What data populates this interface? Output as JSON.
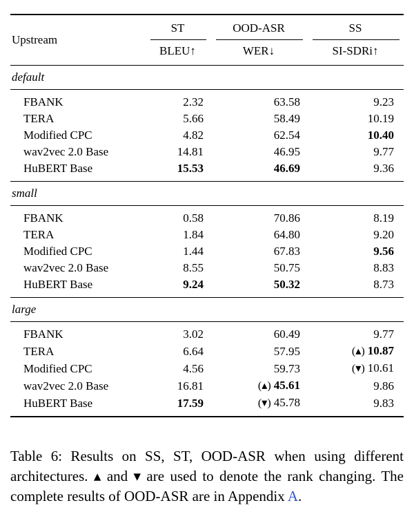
{
  "table": {
    "header": {
      "upstream": "Upstream",
      "groups": [
        {
          "name": "ST",
          "metric": "BLEU↑"
        },
        {
          "name": "OOD-ASR",
          "metric": "WER↓"
        },
        {
          "name": "SS",
          "metric": "SI-SDRi↑"
        }
      ]
    },
    "sections": [
      {
        "label": "default",
        "rows": [
          {
            "upstream": "FBANK",
            "cells": [
              {
                "v": "2.32"
              },
              {
                "v": "63.58"
              },
              {
                "v": "9.23"
              }
            ]
          },
          {
            "upstream": "TERA",
            "cells": [
              {
                "v": "5.66"
              },
              {
                "v": "58.49"
              },
              {
                "v": "10.19"
              }
            ]
          },
          {
            "upstream": "Modified CPC",
            "cells": [
              {
                "v": "4.82"
              },
              {
                "v": "62.54"
              },
              {
                "v": "10.40",
                "bold": true
              }
            ]
          },
          {
            "upstream": "wav2vec 2.0 Base",
            "cells": [
              {
                "v": "14.81"
              },
              {
                "v": "46.95"
              },
              {
                "v": "9.77"
              }
            ]
          },
          {
            "upstream": "HuBERT Base",
            "cells": [
              {
                "v": "15.53",
                "bold": true
              },
              {
                "v": "46.69",
                "bold": true
              },
              {
                "v": "9.36"
              }
            ]
          }
        ]
      },
      {
        "label": "small",
        "rows": [
          {
            "upstream": "FBANK",
            "cells": [
              {
                "v": "0.58"
              },
              {
                "v": "70.86"
              },
              {
                "v": "8.19"
              }
            ]
          },
          {
            "upstream": "TERA",
            "cells": [
              {
                "v": "1.84"
              },
              {
                "v": "64.80"
              },
              {
                "v": "9.20"
              }
            ]
          },
          {
            "upstream": "Modified CPC",
            "cells": [
              {
                "v": "1.44"
              },
              {
                "v": "67.83"
              },
              {
                "v": "9.56",
                "bold": true
              }
            ]
          },
          {
            "upstream": "wav2vec 2.0 Base",
            "cells": [
              {
                "v": "8.55"
              },
              {
                "v": "50.75"
              },
              {
                "v": "8.83"
              }
            ]
          },
          {
            "upstream": "HuBERT Base",
            "cells": [
              {
                "v": "9.24",
                "bold": true
              },
              {
                "v": "50.32",
                "bold": true
              },
              {
                "v": "8.73"
              }
            ]
          }
        ]
      },
      {
        "label": "large",
        "rows": [
          {
            "upstream": "FBANK",
            "cells": [
              {
                "v": "3.02"
              },
              {
                "v": "60.49"
              },
              {
                "v": "9.77"
              }
            ]
          },
          {
            "upstream": "TERA",
            "cells": [
              {
                "v": "6.64"
              },
              {
                "v": "57.95"
              },
              {
                "v": "10.87",
                "bold": true,
                "mark": "up"
              }
            ]
          },
          {
            "upstream": "Modified CPC",
            "cells": [
              {
                "v": "4.56"
              },
              {
                "v": "59.73"
              },
              {
                "v": "10.61",
                "mark": "down"
              }
            ]
          },
          {
            "upstream": "wav2vec 2.0 Base",
            "cells": [
              {
                "v": "16.81"
              },
              {
                "v": "45.61",
                "bold": true,
                "mark": "up"
              },
              {
                "v": "9.86"
              }
            ]
          },
          {
            "upstream": "HuBERT Base",
            "cells": [
              {
                "v": "17.59",
                "bold": true
              },
              {
                "v": "45.78",
                "mark": "down"
              },
              {
                "v": "9.83"
              }
            ]
          }
        ]
      }
    ]
  },
  "marks": {
    "up": "(▴)",
    "down": "(▾)"
  },
  "caption": {
    "text_before_link": "Table 6: Results on SS, ST, OOD-ASR when using different architectures. ▴ and ▾ are used to denote the rank changing. The complete results of OOD-ASR are in Appendix ",
    "link_text": "A",
    "text_after_link": "."
  },
  "colors": {
    "text": "#000000",
    "background": "#ffffff",
    "link": "#2a56c6",
    "rule": "#000000"
  }
}
